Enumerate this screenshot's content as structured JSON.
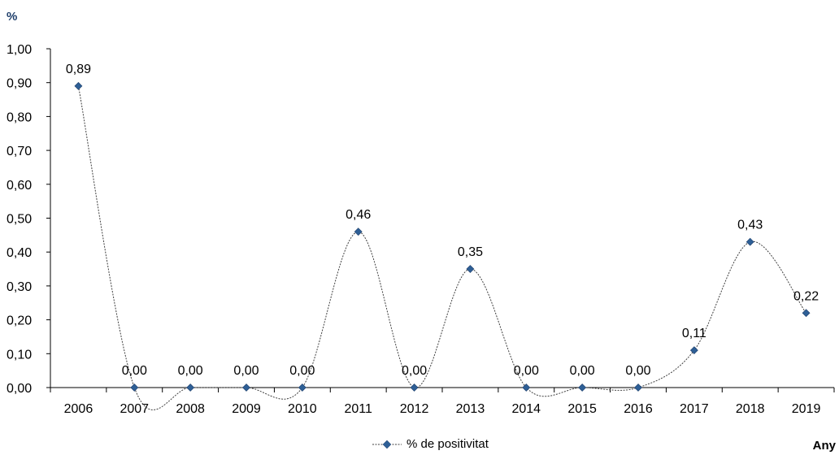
{
  "chart_data": {
    "type": "line",
    "smooth": true,
    "y_unit_label": "%",
    "x_unit_label": "Any",
    "categories": [
      "2006",
      "2007",
      "2008",
      "2009",
      "2010",
      "2011",
      "2012",
      "2013",
      "2014",
      "2015",
      "2016",
      "2017",
      "2018",
      "2019"
    ],
    "series": [
      {
        "name": "% de positivitat",
        "values": [
          0.89,
          0.0,
          0.0,
          0.0,
          0.0,
          0.46,
          0.0,
          0.35,
          0.0,
          0.0,
          0.0,
          0.11,
          0.43,
          0.22
        ],
        "data_labels": [
          "0,89",
          "0,00",
          "0,00",
          "0,00",
          "0,00",
          "0,46",
          "0,00",
          "0,35",
          "0,00",
          "0,00",
          "0,00",
          "0,11",
          "0,43",
          "0,22"
        ],
        "marker": "diamond",
        "marker_color": "#2e5f96",
        "line_style": "dotted",
        "line_color": "#404040"
      }
    ],
    "ylim": [
      0,
      1.0
    ],
    "y_ticks": [
      "0,00",
      "0,10",
      "0,20",
      "0,30",
      "0,40",
      "0,50",
      "0,60",
      "0,70",
      "0,80",
      "0,90",
      "1,00"
    ],
    "grid": false,
    "legend_position": "bottom-center"
  }
}
